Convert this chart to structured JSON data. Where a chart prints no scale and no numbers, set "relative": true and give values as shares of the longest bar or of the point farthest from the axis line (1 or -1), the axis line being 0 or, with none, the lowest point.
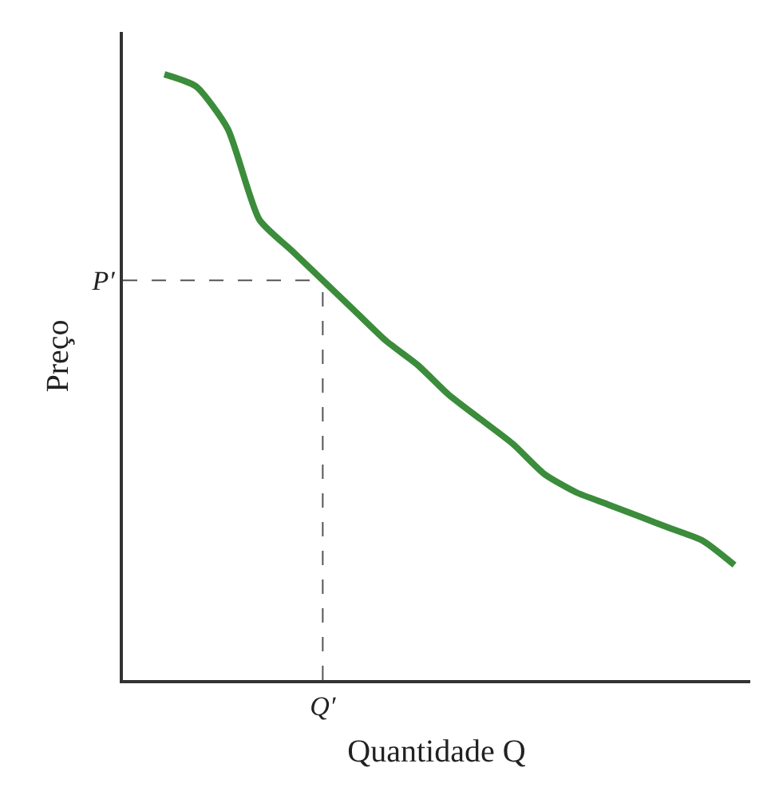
{
  "chart_data": {
    "type": "line",
    "relative": true,
    "xlabel": "Quantidade Q",
    "ylabel": "Preço",
    "categories": [
      null,
      null,
      null,
      null,
      null,
      null,
      null,
      null,
      null,
      null,
      null,
      null,
      null,
      null,
      null,
      null,
      null,
      null,
      null
    ],
    "series": [
      {
        "color": "#3b8c3b",
        "values": [
          1.0,
          0.98,
          0.91,
          0.76,
          0.71,
          0.66,
          0.61,
          0.56,
          0.52,
          0.47,
          0.43,
          0.39,
          0.34,
          0.31,
          0.29,
          0.27,
          0.25,
          0.23,
          0.19
        ]
      }
    ],
    "ref_lines": [
      {
        "axis": "y",
        "value": 0.66,
        "label": "P′",
        "line_style": "dashed",
        "color": "#555555"
      }
    ],
    "annotations": [
      "Q′"
    ],
    "grid": false,
    "legend": false,
    "marker": "none",
    "line_style": "solid"
  }
}
